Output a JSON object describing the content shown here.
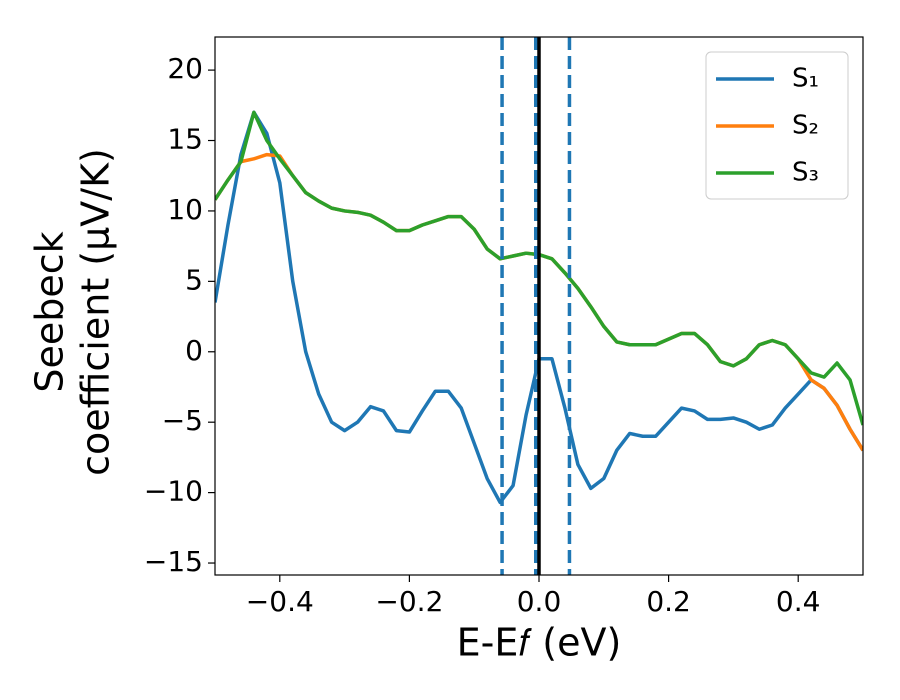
{
  "chart_data": {
    "type": "line",
    "xlabel": "E-E𝑓 (eV)",
    "ylabel": [
      "Seebeck",
      "coefficient  (μV/K)"
    ],
    "x": [
      -0.5,
      -0.48,
      -0.46,
      -0.44,
      -0.42,
      -0.4,
      -0.38,
      -0.36,
      -0.34,
      -0.32,
      -0.3,
      -0.28,
      -0.26,
      -0.24,
      -0.22,
      -0.2,
      -0.18,
      -0.16,
      -0.14,
      -0.12,
      -0.1,
      -0.08,
      -0.06,
      -0.04,
      -0.02,
      0,
      0.02,
      0.04,
      0.06,
      0.08,
      0.1,
      0.12,
      0.14,
      0.16,
      0.18,
      0.2,
      0.22,
      0.24,
      0.26,
      0.28,
      0.3,
      0.32,
      0.34,
      0.36,
      0.38,
      0.4,
      0.42,
      0.44,
      0.46,
      0.48,
      0.5
    ],
    "series": [
      {
        "name": "S₁",
        "color": "#1f77b4",
        "values": [
          3.5,
          9,
          14,
          17,
          15.5,
          12,
          5,
          0,
          -3,
          -5,
          -5.6,
          -5,
          -3.9,
          -4.2,
          -5.6,
          -5.7,
          -4.2,
          -2.8,
          -2.8,
          -4,
          -6.5,
          -9,
          -10.7,
          -9.5,
          -4.5,
          -0.5,
          -0.5,
          -4,
          -8,
          -9.7,
          -9,
          -7,
          -5.8,
          -6,
          -6,
          -5,
          -4,
          -4.2,
          -4.8,
          -4.8,
          -4.7,
          -5,
          -5.5,
          -5.2,
          -4,
          -3,
          -2,
          -2.6,
          -3.8,
          -5.5,
          -7
        ]
      },
      {
        "name": "S₂",
        "color": "#ff7f0e",
        "values": [
          10.8,
          12.2,
          13.5,
          13.7,
          14,
          13.9,
          12.5,
          11.3,
          10.7,
          10.2,
          10,
          9.9,
          9.7,
          9.2,
          8.6,
          8.6,
          9,
          9.3,
          9.6,
          9.6,
          8.7,
          7.3,
          6.6,
          6.8,
          7,
          6.9,
          6.6,
          5.6,
          4.5,
          3.2,
          1.8,
          0.7,
          0.5,
          0.5,
          0.5,
          0.9,
          1.3,
          1.3,
          0.5,
          -0.7,
          -1,
          -0.5,
          0.5,
          0.8,
          0.5,
          -0.5,
          -2,
          -2.6,
          -3.8,
          -5.5,
          -7
        ]
      },
      {
        "name": "S₃",
        "color": "#2ca02c",
        "values": [
          10.8,
          12.2,
          13.5,
          17,
          15,
          13.7,
          12.5,
          11.3,
          10.7,
          10.2,
          10,
          9.9,
          9.7,
          9.2,
          8.6,
          8.6,
          9,
          9.3,
          9.6,
          9.6,
          8.7,
          7.3,
          6.6,
          6.8,
          7,
          6.9,
          6.6,
          5.6,
          4.5,
          3.2,
          1.8,
          0.7,
          0.5,
          0.5,
          0.5,
          0.9,
          1.3,
          1.3,
          0.5,
          -0.7,
          -1,
          -0.5,
          0.5,
          0.8,
          0.5,
          -0.5,
          -1.5,
          -1.8,
          -0.8,
          -2,
          -5.2
        ]
      }
    ],
    "vlines": [
      {
        "x": -0.057,
        "color": "#1f77b4",
        "style": "dashed"
      },
      {
        "x": -0.005,
        "color": "#1f77b4",
        "style": "dashed"
      },
      {
        "x": 0.047,
        "color": "#1f77b4",
        "style": "dashed"
      },
      {
        "x": 0,
        "color": "#000000",
        "style": "solid"
      }
    ],
    "xlim": [
      -0.5,
      0.5
    ],
    "ylim": [
      -15.85,
      22.35
    ],
    "xticks": [
      {
        "value": -0.4,
        "label": "−0.4"
      },
      {
        "value": -0.2,
        "label": "−0.2"
      },
      {
        "value": 0,
        "label": "0.0"
      },
      0.2,
      0.4
    ],
    "yticks": [
      {
        "value": -15,
        "label": "−15"
      },
      {
        "value": -10,
        "label": "−10"
      },
      {
        "value": -5,
        "label": "−5"
      },
      0,
      5,
      10,
      15,
      20
    ],
    "legend": "upper right"
  }
}
